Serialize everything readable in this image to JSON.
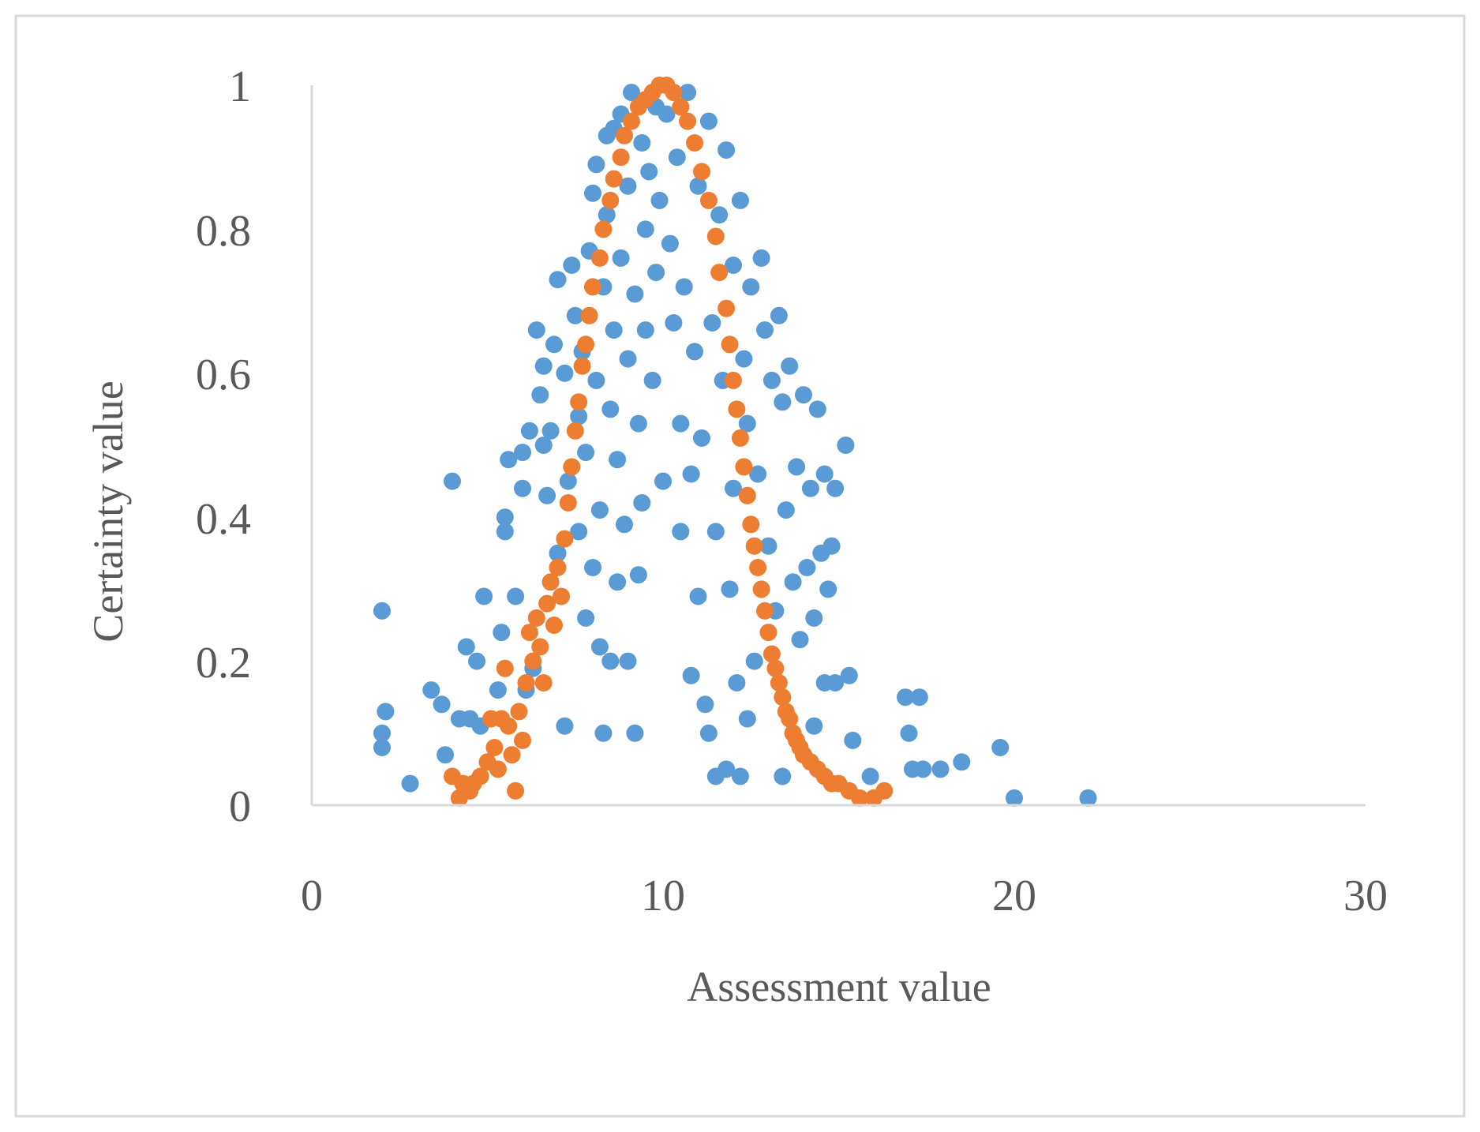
{
  "chart_data": {
    "type": "scatter",
    "title": "",
    "xlabel": "Assessment value",
    "ylabel": "Certainty value",
    "xlim": [
      0,
      30
    ],
    "ylim": [
      0,
      1
    ],
    "x_ticks": [
      "0",
      "10",
      "20",
      "30"
    ],
    "y_ticks": [
      "0",
      "0.2",
      "0.4",
      "0.6",
      "0.8",
      "1"
    ],
    "grid": false,
    "legend": "none",
    "colors": {
      "series_1": "#5b9bd5",
      "series_2": "#ed7d31",
      "axis": "#d9d9d9",
      "frame": "#d9d9d9",
      "text": "#595959"
    },
    "series": [
      {
        "color": "#5b9bd5",
        "points": [
          [
            2.0,
            0.27
          ],
          [
            2.1,
            0.13
          ],
          [
            2.0,
            0.1
          ],
          [
            2.0,
            0.08
          ],
          [
            2.8,
            0.03
          ],
          [
            3.4,
            0.16
          ],
          [
            3.7,
            0.14
          ],
          [
            3.8,
            0.07
          ],
          [
            4.0,
            0.45
          ],
          [
            4.2,
            0.12
          ],
          [
            4.4,
            0.22
          ],
          [
            4.5,
            0.12
          ],
          [
            4.7,
            0.2
          ],
          [
            4.8,
            0.11
          ],
          [
            4.9,
            0.29
          ],
          [
            5.3,
            0.16
          ],
          [
            5.4,
            0.24
          ],
          [
            5.5,
            0.38
          ],
          [
            5.5,
            0.4
          ],
          [
            5.6,
            0.48
          ],
          [
            5.8,
            0.29
          ],
          [
            6.0,
            0.44
          ],
          [
            6.0,
            0.49
          ],
          [
            6.1,
            0.16
          ],
          [
            6.2,
            0.52
          ],
          [
            6.3,
            0.19
          ],
          [
            6.4,
            0.66
          ],
          [
            6.5,
            0.57
          ],
          [
            6.6,
            0.5
          ],
          [
            6.6,
            0.61
          ],
          [
            6.7,
            0.43
          ],
          [
            6.8,
            0.52
          ],
          [
            6.9,
            0.64
          ],
          [
            7.0,
            0.73
          ],
          [
            7.0,
            0.35
          ],
          [
            7.2,
            0.6
          ],
          [
            7.2,
            0.11
          ],
          [
            7.3,
            0.45
          ],
          [
            7.4,
            0.75
          ],
          [
            7.5,
            0.68
          ],
          [
            7.6,
            0.54
          ],
          [
            7.6,
            0.38
          ],
          [
            7.7,
            0.63
          ],
          [
            7.8,
            0.49
          ],
          [
            7.8,
            0.26
          ],
          [
            7.9,
            0.77
          ],
          [
            8.0,
            0.85
          ],
          [
            8.0,
            0.33
          ],
          [
            8.1,
            0.59
          ],
          [
            8.1,
            0.89
          ],
          [
            8.2,
            0.41
          ],
          [
            8.2,
            0.22
          ],
          [
            8.3,
            0.72
          ],
          [
            8.3,
            0.1
          ],
          [
            8.4,
            0.82
          ],
          [
            8.4,
            0.93
          ],
          [
            8.5,
            0.55
          ],
          [
            8.5,
            0.2
          ],
          [
            8.6,
            0.66
          ],
          [
            8.6,
            0.94
          ],
          [
            8.7,
            0.31
          ],
          [
            8.7,
            0.48
          ],
          [
            8.8,
            0.96
          ],
          [
            8.8,
            0.76
          ],
          [
            8.9,
            0.39
          ],
          [
            9.0,
            0.86
          ],
          [
            9.0,
            0.62
          ],
          [
            9.0,
            0.2
          ],
          [
            9.1,
            0.99
          ],
          [
            9.2,
            0.71
          ],
          [
            9.2,
            0.1
          ],
          [
            9.3,
            0.53
          ],
          [
            9.3,
            0.32
          ],
          [
            9.4,
            0.92
          ],
          [
            9.4,
            0.42
          ],
          [
            9.5,
            0.8
          ],
          [
            9.5,
            0.66
          ],
          [
            9.6,
            0.88
          ],
          [
            9.7,
            0.59
          ],
          [
            9.8,
            0.97
          ],
          [
            9.8,
            0.74
          ],
          [
            9.9,
            0.84
          ],
          [
            10.0,
            0.45
          ],
          [
            10.1,
            0.96
          ],
          [
            10.2,
            0.78
          ],
          [
            10.3,
            0.67
          ],
          [
            10.4,
            0.9
          ],
          [
            10.5,
            0.53
          ],
          [
            10.5,
            0.38
          ],
          [
            10.6,
            0.72
          ],
          [
            10.7,
            0.99
          ],
          [
            10.8,
            0.46
          ],
          [
            10.8,
            0.18
          ],
          [
            10.9,
            0.63
          ],
          [
            11.0,
            0.86
          ],
          [
            11.0,
            0.29
          ],
          [
            11.1,
            0.51
          ],
          [
            11.2,
            0.14
          ],
          [
            11.3,
            0.95
          ],
          [
            11.3,
            0.1
          ],
          [
            11.4,
            0.67
          ],
          [
            11.5,
            0.38
          ],
          [
            11.5,
            0.04
          ],
          [
            11.6,
            0.82
          ],
          [
            11.7,
            0.59
          ],
          [
            11.8,
            0.05
          ],
          [
            11.8,
            0.91
          ],
          [
            11.9,
            0.3
          ],
          [
            12.0,
            0.75
          ],
          [
            12.0,
            0.44
          ],
          [
            12.1,
            0.17
          ],
          [
            12.2,
            0.84
          ],
          [
            12.2,
            0.04
          ],
          [
            12.3,
            0.62
          ],
          [
            12.4,
            0.53
          ],
          [
            12.4,
            0.12
          ],
          [
            12.5,
            0.72
          ],
          [
            12.6,
            0.2
          ],
          [
            12.7,
            0.46
          ],
          [
            12.8,
            0.76
          ],
          [
            12.9,
            0.66
          ],
          [
            13.0,
            0.36
          ],
          [
            13.1,
            0.59
          ],
          [
            13.2,
            0.27
          ],
          [
            13.3,
            0.68
          ],
          [
            13.4,
            0.56
          ],
          [
            13.4,
            0.04
          ],
          [
            13.5,
            0.41
          ],
          [
            13.6,
            0.61
          ],
          [
            13.7,
            0.31
          ],
          [
            13.8,
            0.47
          ],
          [
            13.9,
            0.23
          ],
          [
            14.0,
            0.57
          ],
          [
            14.1,
            0.33
          ],
          [
            14.2,
            0.44
          ],
          [
            14.3,
            0.26
          ],
          [
            14.3,
            0.11
          ],
          [
            14.4,
            0.55
          ],
          [
            14.5,
            0.35
          ],
          [
            14.6,
            0.46
          ],
          [
            14.6,
            0.17
          ],
          [
            14.7,
            0.3
          ],
          [
            14.8,
            0.36
          ],
          [
            14.9,
            0.44
          ],
          [
            14.9,
            0.17
          ],
          [
            15.2,
            0.5
          ],
          [
            15.3,
            0.18
          ],
          [
            15.4,
            0.09
          ],
          [
            15.9,
            0.04
          ],
          [
            16.9,
            0.15
          ],
          [
            17.0,
            0.1
          ],
          [
            17.1,
            0.05
          ],
          [
            17.3,
            0.15
          ],
          [
            17.4,
            0.05
          ],
          [
            17.9,
            0.05
          ],
          [
            18.5,
            0.06
          ],
          [
            19.6,
            0.08
          ],
          [
            20.0,
            0.01
          ],
          [
            22.1,
            0.01
          ]
        ]
      },
      {
        "color": "#ed7d31",
        "points": [
          [
            4.0,
            0.04
          ],
          [
            4.2,
            0.01
          ],
          [
            4.3,
            0.03
          ],
          [
            4.5,
            0.02
          ],
          [
            4.6,
            0.03
          ],
          [
            4.8,
            0.04
          ],
          [
            5.0,
            0.06
          ],
          [
            5.1,
            0.12
          ],
          [
            5.2,
            0.08
          ],
          [
            5.3,
            0.05
          ],
          [
            5.4,
            0.12
          ],
          [
            5.5,
            0.19
          ],
          [
            5.6,
            0.11
          ],
          [
            5.7,
            0.07
          ],
          [
            5.8,
            0.02
          ],
          [
            5.9,
            0.13
          ],
          [
            6.0,
            0.09
          ],
          [
            6.1,
            0.17
          ],
          [
            6.2,
            0.24
          ],
          [
            6.3,
            0.2
          ],
          [
            6.4,
            0.26
          ],
          [
            6.5,
            0.22
          ],
          [
            6.6,
            0.17
          ],
          [
            6.7,
            0.28
          ],
          [
            6.8,
            0.31
          ],
          [
            6.9,
            0.25
          ],
          [
            7.0,
            0.33
          ],
          [
            7.1,
            0.29
          ],
          [
            7.2,
            0.37
          ],
          [
            7.3,
            0.42
          ],
          [
            7.4,
            0.47
          ],
          [
            7.5,
            0.52
          ],
          [
            7.6,
            0.56
          ],
          [
            7.7,
            0.61
          ],
          [
            7.8,
            0.64
          ],
          [
            7.9,
            0.68
          ],
          [
            8.0,
            0.72
          ],
          [
            8.2,
            0.76
          ],
          [
            8.3,
            0.8
          ],
          [
            8.5,
            0.84
          ],
          [
            8.6,
            0.87
          ],
          [
            8.8,
            0.9
          ],
          [
            8.9,
            0.93
          ],
          [
            9.1,
            0.95
          ],
          [
            9.3,
            0.97
          ],
          [
            9.5,
            0.98
          ],
          [
            9.7,
            0.99
          ],
          [
            9.9,
            1.0
          ],
          [
            10.1,
            1.0
          ],
          [
            10.3,
            0.99
          ],
          [
            10.5,
            0.97
          ],
          [
            10.7,
            0.95
          ],
          [
            10.9,
            0.92
          ],
          [
            11.1,
            0.88
          ],
          [
            11.3,
            0.84
          ],
          [
            11.5,
            0.79
          ],
          [
            11.6,
            0.74
          ],
          [
            11.8,
            0.69
          ],
          [
            11.9,
            0.64
          ],
          [
            12.0,
            0.59
          ],
          [
            12.1,
            0.55
          ],
          [
            12.2,
            0.51
          ],
          [
            12.3,
            0.47
          ],
          [
            12.4,
            0.43
          ],
          [
            12.5,
            0.39
          ],
          [
            12.6,
            0.36
          ],
          [
            12.7,
            0.33
          ],
          [
            12.8,
            0.3
          ],
          [
            12.9,
            0.27
          ],
          [
            13.0,
            0.24
          ],
          [
            13.1,
            0.21
          ],
          [
            13.2,
            0.19
          ],
          [
            13.3,
            0.17
          ],
          [
            13.4,
            0.15
          ],
          [
            13.5,
            0.13
          ],
          [
            13.6,
            0.12
          ],
          [
            13.7,
            0.1
          ],
          [
            13.8,
            0.09
          ],
          [
            13.9,
            0.08
          ],
          [
            14.0,
            0.07
          ],
          [
            14.2,
            0.06
          ],
          [
            14.4,
            0.05
          ],
          [
            14.6,
            0.04
          ],
          [
            14.8,
            0.03
          ],
          [
            15.0,
            0.03
          ],
          [
            15.3,
            0.02
          ],
          [
            15.6,
            0.01
          ],
          [
            16.0,
            0.01
          ],
          [
            16.3,
            0.02
          ]
        ]
      }
    ]
  }
}
